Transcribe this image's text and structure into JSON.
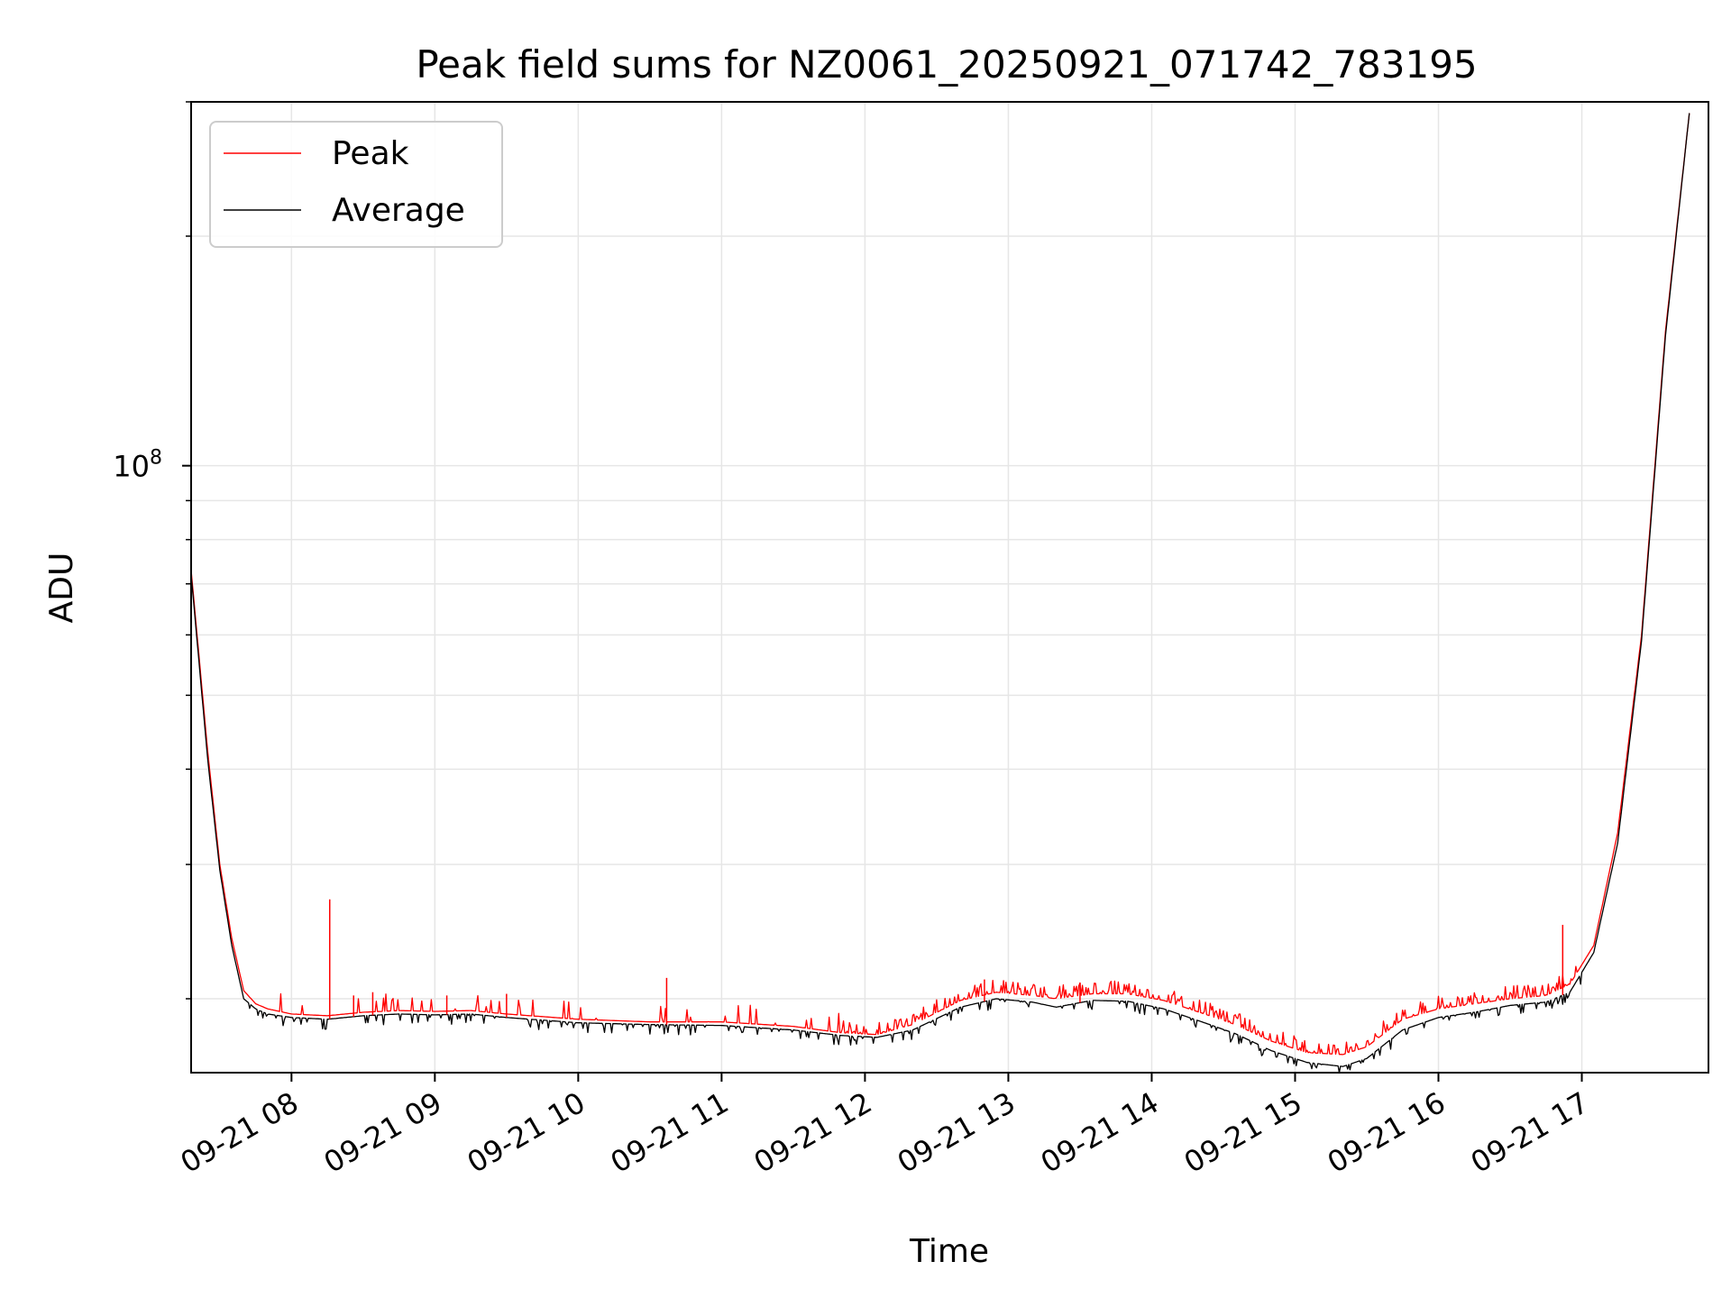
{
  "chart_data": {
    "type": "line",
    "title": "Peak field sums for NZ0061_20250921_071742_783195",
    "xlabel": "Time",
    "ylabel": "ADU",
    "yscale": "log",
    "ylim": [
      16000000,
      300000000
    ],
    "xlim": [
      "09-21 07:18",
      "09-21 17:53"
    ],
    "x_tick_labels": [
      "09-21 08",
      "09-21 09",
      "09-21 10",
      "09-21 11",
      "09-21 12",
      "09-21 13",
      "09-21 14",
      "09-21 15",
      "09-21 16",
      "09-21 17"
    ],
    "y_tick_labels": [
      {
        "value": 100000000,
        "base": "10",
        "exp": "8"
      }
    ],
    "grid": true,
    "legend_position": "upper-left",
    "series": [
      {
        "name": "Peak",
        "color": "#ff0000",
        "points": [
          [
            "09-21 07:18",
            73000000
          ],
          [
            "09-21 07:25",
            42000000
          ],
          [
            "09-21 07:30",
            30000000
          ],
          [
            "09-21 07:35",
            24000000
          ],
          [
            "09-21 07:40",
            20500000
          ],
          [
            "09-21 07:45",
            19700000
          ],
          [
            "09-21 07:50",
            19400000
          ],
          [
            "09-21 08:00",
            19100000
          ],
          [
            "09-21 08:15",
            19000000
          ],
          [
            "09-21 08:30",
            19200000
          ],
          [
            "09-21 08:45",
            19300000
          ],
          [
            "09-21 09:00",
            19250000
          ],
          [
            "09-21 09:15",
            19300000
          ],
          [
            "09-21 09:30",
            19100000
          ],
          [
            "09-21 10:00",
            18800000
          ],
          [
            "09-21 10:30",
            18650000
          ],
          [
            "09-21 11:00",
            18650000
          ],
          [
            "09-21 11:30",
            18400000
          ],
          [
            "09-21 11:50",
            18050000
          ],
          [
            "09-21 12:05",
            17950000
          ],
          [
            "09-21 12:20",
            18500000
          ],
          [
            "09-21 12:40",
            19900000
          ],
          [
            "09-21 12:55",
            20400000
          ],
          [
            "09-21 13:10",
            20200000
          ],
          [
            "09-21 13:20",
            20000000
          ],
          [
            "09-21 13:35",
            20300000
          ],
          [
            "09-21 13:50",
            20300000
          ],
          [
            "09-21 14:05",
            19900000
          ],
          [
            "09-21 14:20",
            19200000
          ],
          [
            "09-21 14:35",
            18500000
          ],
          [
            "09-21 14:50",
            17600000
          ],
          [
            "09-21 15:05",
            17000000
          ],
          [
            "09-21 15:20",
            16900000
          ],
          [
            "09-21 15:30",
            17300000
          ],
          [
            "09-21 15:45",
            18800000
          ],
          [
            "09-21 16:00",
            19400000
          ],
          [
            "09-21 16:15",
            19700000
          ],
          [
            "09-21 16:30",
            20000000
          ],
          [
            "09-21 16:45",
            20200000
          ],
          [
            "09-21 16:55",
            20900000
          ],
          [
            "09-21 17:05",
            23500000
          ],
          [
            "09-21 17:15",
            33000000
          ],
          [
            "09-21 17:25",
            60000000
          ],
          [
            "09-21 17:35",
            150000000
          ],
          [
            "09-21 17:45",
            290000000
          ]
        ]
      },
      {
        "name": "Average",
        "color": "#000000",
        "points": [
          [
            "09-21 07:18",
            72000000
          ],
          [
            "09-21 07:25",
            41000000
          ],
          [
            "09-21 07:30",
            29500000
          ],
          [
            "09-21 07:35",
            23500000
          ],
          [
            "09-21 07:40",
            20000000
          ],
          [
            "09-21 07:45",
            19400000
          ],
          [
            "09-21 07:50",
            19100000
          ],
          [
            "09-21 08:00",
            18900000
          ],
          [
            "09-21 08:15",
            18800000
          ],
          [
            "09-21 08:30",
            19000000
          ],
          [
            "09-21 08:45",
            19100000
          ],
          [
            "09-21 09:00",
            19050000
          ],
          [
            "09-21 09:15",
            19100000
          ],
          [
            "09-21 09:30",
            18900000
          ],
          [
            "09-21 10:00",
            18600000
          ],
          [
            "09-21 10:30",
            18500000
          ],
          [
            "09-21 11:00",
            18450000
          ],
          [
            "09-21 11:30",
            18200000
          ],
          [
            "09-21 11:50",
            17900000
          ],
          [
            "09-21 12:05",
            17800000
          ],
          [
            "09-21 12:20",
            18200000
          ],
          [
            "09-21 12:40",
            19500000
          ],
          [
            "09-21 12:55",
            20000000
          ],
          [
            "09-21 13:10",
            19800000
          ],
          [
            "09-21 13:20",
            19500000
          ],
          [
            "09-21 13:35",
            19900000
          ],
          [
            "09-21 13:50",
            19850000
          ],
          [
            "09-21 14:05",
            19400000
          ],
          [
            "09-21 14:20",
            18700000
          ],
          [
            "09-21 14:35",
            18000000
          ],
          [
            "09-21 14:50",
            17100000
          ],
          [
            "09-21 15:05",
            16500000
          ],
          [
            "09-21 15:20",
            16300000
          ],
          [
            "09-21 15:30",
            16700000
          ],
          [
            "09-21 15:45",
            18200000
          ],
          [
            "09-21 16:00",
            18900000
          ],
          [
            "09-21 16:15",
            19200000
          ],
          [
            "09-21 16:30",
            19600000
          ],
          [
            "09-21 16:45",
            19800000
          ],
          [
            "09-21 16:55",
            20400000
          ],
          [
            "09-21 17:05",
            23000000
          ],
          [
            "09-21 17:15",
            32000000
          ],
          [
            "09-21 17:25",
            59000000
          ],
          [
            "09-21 17:35",
            148000000
          ],
          [
            "09-21 17:45",
            290000000
          ]
        ]
      }
    ],
    "spikes": [
      {
        "x": "09-21 08:16",
        "y": 27000000
      },
      {
        "x": "09-21 08:26",
        "y": 20200000
      },
      {
        "x": "09-21 08:34",
        "y": 20400000
      },
      {
        "x": "09-21 09:05",
        "y": 20200000
      },
      {
        "x": "09-21 09:30",
        "y": 20300000
      },
      {
        "x": "09-21 10:37",
        "y": 21300000
      },
      {
        "x": "09-21 12:50",
        "y": 21200000
      },
      {
        "x": "09-21 13:30",
        "y": 21000000
      },
      {
        "x": "09-21 16:52",
        "y": 25000000
      }
    ]
  }
}
